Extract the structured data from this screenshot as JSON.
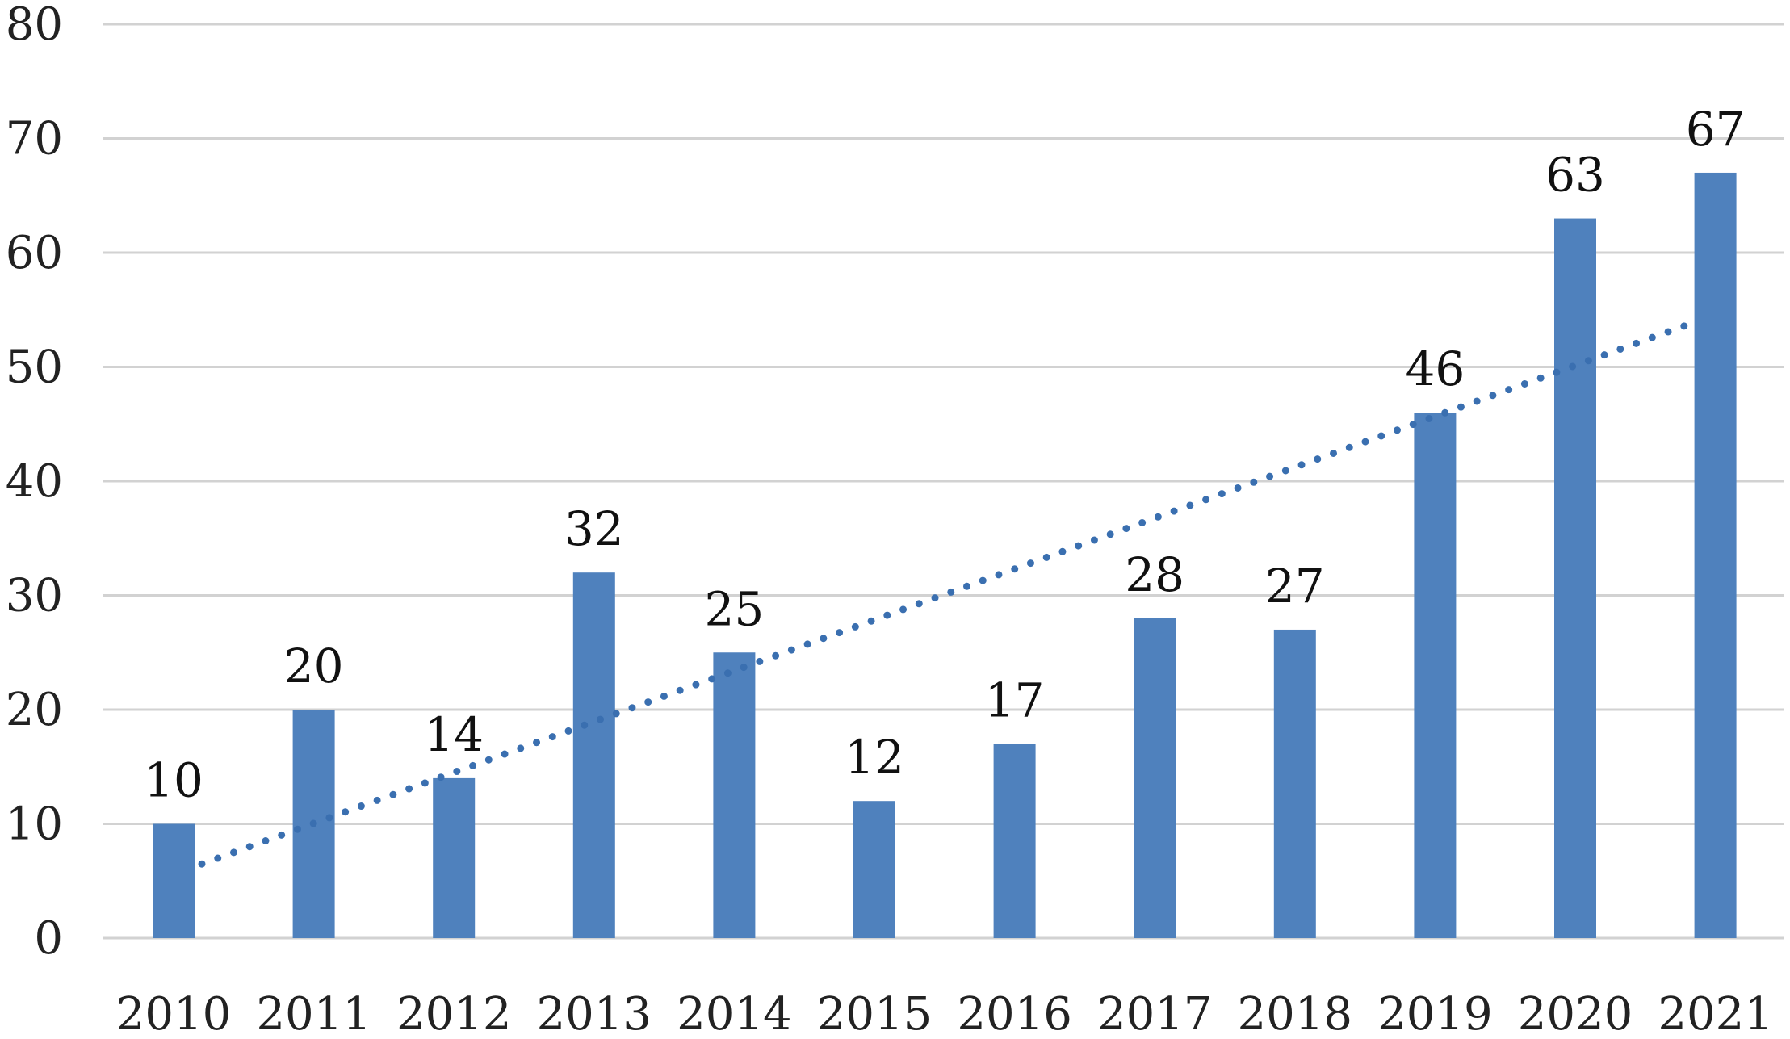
{
  "chart_data": {
    "type": "bar",
    "categories": [
      "2010",
      "2011",
      "2012",
      "2013",
      "2014",
      "2015",
      "2016",
      "2017",
      "2018",
      "2019",
      "2020",
      "2021"
    ],
    "values": [
      10,
      20,
      14,
      32,
      25,
      12,
      17,
      28,
      27,
      46,
      63,
      67
    ],
    "ylim": [
      0,
      80
    ],
    "yticks": [
      0,
      10,
      20,
      30,
      40,
      50,
      60,
      70,
      80
    ],
    "grid": true,
    "data_labels": true,
    "trendline": {
      "type": "linear",
      "style": "dotted"
    },
    "colors": {
      "bar": "#4f81bd",
      "trendline": "#3a6fb0",
      "grid": "#d2d2d2"
    }
  }
}
